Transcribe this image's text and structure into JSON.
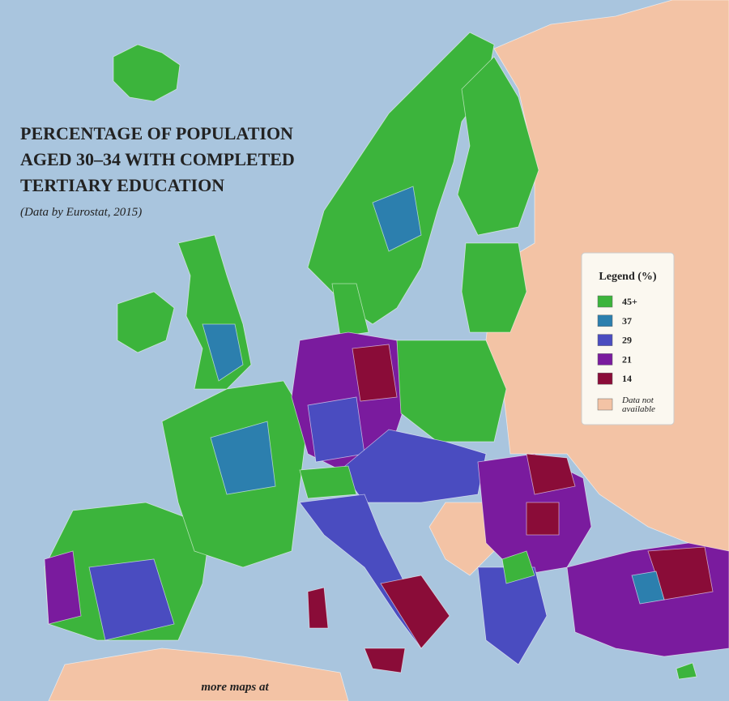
{
  "title_lines": [
    "PERCENTAGE OF POPULATION",
    "AGED 30–34 WITH COMPLETED",
    "TERTIARY EDUCATION"
  ],
  "subtitle": "(Data by Eurostat, 2015)",
  "legend": {
    "title": "Legend (%)",
    "items": [
      {
        "label": "45+",
        "color": "#3cb43c"
      },
      {
        "label": "37",
        "color": "#2c7fae"
      },
      {
        "label": "29",
        "color": "#4a4cc0"
      },
      {
        "label": "21",
        "color": "#7a1b9e"
      },
      {
        "label": "14",
        "color": "#8a0c38"
      },
      {
        "label": "Data not available",
        "color": "#f3c3a5"
      }
    ]
  },
  "footer": "more maps at"
}
